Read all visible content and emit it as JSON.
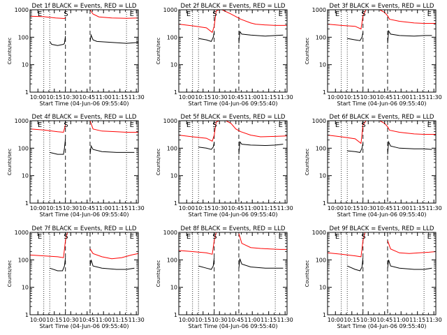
{
  "chart_data": [
    {
      "panel": "det1f",
      "type": "line",
      "title": "Det 1f BLACK = Events, RED = LLD",
      "xlabel": "Start Time (04-Jun-06 09:55:40)",
      "ylabel": "Counts/sec",
      "yscale": "log",
      "ylim": [
        1,
        1000
      ],
      "yticks": [
        "1",
        "10",
        "100",
        "1000"
      ],
      "xticks": [
        "10:00",
        "10:15",
        "10:30",
        "10:45",
        "11:00",
        "11:15",
        "11:30"
      ],
      "markers": [
        "E",
        "S",
        "E"
      ],
      "series": [
        {
          "color": "#ff0000",
          "x": [
            -0.08,
            0.06,
            0.18,
            0.27,
            0.28
          ],
          "y": [
            580,
            560,
            500,
            480,
            520
          ]
        },
        {
          "color": "#ff0000",
          "x": [
            0.53,
            0.56,
            0.62,
            0.75,
            0.9,
            1.02
          ],
          "y": [
            1000,
            700,
            550,
            500,
            490,
            500
          ]
        },
        {
          "color": "#000000",
          "x": [
            0.12,
            0.14,
            0.2,
            0.26,
            0.27,
            0.28
          ],
          "y": [
            70,
            55,
            50,
            55,
            60,
            110
          ]
        },
        {
          "color": "#000000",
          "x": [
            0.53,
            0.54,
            0.56,
            0.6,
            0.75,
            0.9,
            1.02
          ],
          "y": [
            70,
            120,
            80,
            70,
            65,
            60,
            65
          ]
        }
      ]
    },
    {
      "panel": "det2f",
      "type": "line",
      "title": "Det 2f BLACK = Events, RED = LLD",
      "xlabel": "Start Time (04-Jun-06 09:55:40)",
      "ylabel": "Counts/sec",
      "yscale": "log",
      "ylim": [
        1,
        1000
      ],
      "yticks": [
        "1",
        "10",
        "100",
        "1000"
      ],
      "xticks": [
        "10:00",
        "10:15",
        "10:30",
        "10:45",
        "11:00",
        "11:15",
        "11:30"
      ],
      "markers": [
        "E",
        "S",
        "E"
      ],
      "series": [
        {
          "color": "#ff0000",
          "x": [
            -0.08,
            0.06,
            0.2,
            0.26,
            0.28,
            0.3,
            0.33
          ],
          "y": [
            300,
            260,
            220,
            150,
            250,
            900,
            1000
          ]
        },
        {
          "color": "#ff0000",
          "x": [
            0.36,
            0.45,
            0.55,
            0.65,
            0.7,
            0.8,
            0.9,
            1.02
          ],
          "y": [
            1000,
            700,
            450,
            330,
            300,
            280,
            270,
            270
          ]
        },
        {
          "color": "#000000",
          "x": [
            0.12,
            0.2,
            0.25,
            0.27,
            0.28
          ],
          "y": [
            90,
            80,
            70,
            100,
            150
          ]
        },
        {
          "color": "#000000",
          "x": [
            0.53,
            0.54,
            0.56,
            0.65,
            0.8,
            0.9,
            0.98
          ],
          "y": [
            60,
            160,
            130,
            120,
            110,
            115,
            120
          ]
        }
      ]
    },
    {
      "panel": "det3f",
      "type": "line",
      "title": "Det 3f BLACK = Events, RED = LLD",
      "xlabel": "Start Time (04-Jun-06 09:55:40)",
      "ylabel": "Counts/sec",
      "yscale": "log",
      "ylim": [
        1,
        1000
      ],
      "yticks": [
        "1",
        "10",
        "100",
        "1000"
      ],
      "xticks": [
        "10:00",
        "10:15",
        "10:30",
        "10:45",
        "11:00",
        "11:15",
        "11:30"
      ],
      "markers": [
        "E",
        "S",
        "E"
      ],
      "series": [
        {
          "color": "#ff0000",
          "x": [
            -0.08,
            0.06,
            0.2,
            0.26,
            0.28,
            0.31,
            0.35,
            0.45,
            0.5,
            0.53,
            0.55,
            0.65,
            0.8,
            0.9,
            1.02
          ],
          "y": [
            300,
            270,
            250,
            200,
            600,
            1000,
            1000,
            1000,
            800,
            600,
            450,
            380,
            330,
            320,
            320
          ]
        },
        {
          "color": "#000000",
          "x": [
            0.12,
            0.2,
            0.25,
            0.27,
            0.28
          ],
          "y": [
            90,
            80,
            75,
            100,
            150
          ]
        },
        {
          "color": "#000000",
          "x": [
            0.53,
            0.54,
            0.56,
            0.65,
            0.8,
            0.9,
            0.98
          ],
          "y": [
            60,
            170,
            130,
            115,
            110,
            115,
            115
          ]
        }
      ]
    },
    {
      "panel": "det4f",
      "type": "line",
      "title": "Det 4f BLACK = Events, RED = LLD",
      "xlabel": "Start Time (04-Jun-06 09:55:40)",
      "ylabel": "Counts/sec",
      "yscale": "log",
      "ylim": [
        1,
        1000
      ],
      "yticks": [
        "1",
        "10",
        "100",
        "1000"
      ],
      "xticks": [
        "10:00",
        "10:15",
        "10:30",
        "10:45",
        "11:00",
        "11:15",
        "11:30"
      ],
      "markers": [
        "E",
        "S",
        "E"
      ],
      "series": [
        {
          "color": "#ff0000",
          "x": [
            -0.08,
            0.06,
            0.2,
            0.26,
            0.28
          ],
          "y": [
            500,
            460,
            400,
            380,
            700
          ]
        },
        {
          "color": "#ff0000",
          "x": [
            0.53,
            0.56,
            0.65,
            0.8,
            0.9,
            1.02
          ],
          "y": [
            1000,
            500,
            420,
            400,
            380,
            380
          ]
        },
        {
          "color": "#000000",
          "x": [
            0.12,
            0.2,
            0.26,
            0.27,
            0.28
          ],
          "y": [
            70,
            60,
            60,
            100,
            220
          ]
        },
        {
          "color": "#000000",
          "x": [
            0.53,
            0.54,
            0.56,
            0.65,
            0.8,
            0.9,
            0.98
          ],
          "y": [
            60,
            120,
            90,
            75,
            70,
            70,
            70
          ]
        }
      ]
    },
    {
      "panel": "det5f",
      "type": "line",
      "title": "Det 5f BLACK = Events, RED = LLD",
      "xlabel": "Start Time (04-Jun-06 09:55:40)",
      "ylabel": "Counts/sec",
      "yscale": "log",
      "ylim": [
        1,
        1000
      ],
      "yticks": [
        "1",
        "10",
        "100",
        "1000"
      ],
      "xticks": [
        "10:00",
        "10:15",
        "10:30",
        "10:45",
        "11:00",
        "11:15",
        "11:30"
      ],
      "markers": [
        "E",
        "S",
        "E"
      ],
      "series": [
        {
          "color": "#ff0000",
          "x": [
            -0.08,
            0.06,
            0.2,
            0.26,
            0.28,
            0.3,
            0.33
          ],
          "y": [
            300,
            260,
            230,
            180,
            300,
            900,
            1000
          ]
        },
        {
          "color": "#ff0000",
          "x": [
            0.4,
            0.45,
            0.5,
            0.55,
            0.65,
            0.75,
            0.9,
            1.02
          ],
          "y": [
            1000,
            800,
            500,
            400,
            300,
            260,
            270,
            280
          ]
        },
        {
          "color": "#000000",
          "x": [
            0.12,
            0.2,
            0.25,
            0.27,
            0.28
          ],
          "y": [
            110,
            100,
            90,
            110,
            160
          ]
        },
        {
          "color": "#000000",
          "x": [
            0.53,
            0.54,
            0.56,
            0.65,
            0.8,
            0.9,
            0.98
          ],
          "y": [
            60,
            170,
            140,
            130,
            125,
            130,
            140
          ]
        }
      ]
    },
    {
      "panel": "det6f",
      "type": "line",
      "title": "Det 6f BLACK = Events, RED = LLD",
      "xlabel": "Start Time (04-Jun-06 09:55:40)",
      "ylabel": "Counts/sec",
      "yscale": "log",
      "ylim": [
        1,
        1000
      ],
      "yticks": [
        "1",
        "10",
        "100",
        "1000"
      ],
      "xticks": [
        "10:00",
        "10:15",
        "10:30",
        "10:45",
        "11:00",
        "11:15",
        "11:30"
      ],
      "markers": [
        "E",
        "S",
        "E"
      ],
      "series": [
        {
          "color": "#ff0000",
          "x": [
            -0.08,
            0.06,
            0.2,
            0.26,
            0.28,
            0.31,
            0.35,
            0.45,
            0.5,
            0.53,
            0.55,
            0.65,
            0.8,
            0.9,
            1.02
          ],
          "y": [
            300,
            260,
            220,
            150,
            700,
            1000,
            1000,
            1000,
            800,
            600,
            450,
            380,
            330,
            320,
            320
          ]
        },
        {
          "color": "#000000",
          "x": [
            0.12,
            0.2,
            0.25,
            0.27,
            0.28
          ],
          "y": [
            80,
            75,
            70,
            100,
            150
          ]
        },
        {
          "color": "#000000",
          "x": [
            0.53,
            0.54,
            0.56,
            0.65,
            0.8,
            0.9,
            0.98
          ],
          "y": [
            60,
            170,
            120,
            100,
            95,
            95,
            90
          ]
        }
      ]
    },
    {
      "panel": "det7f",
      "type": "line",
      "title": "Det 7f BLACK = Events, RED = LLD",
      "xlabel": "Start Time (04-Jun-06 09:55:40)",
      "ylabel": "Counts/sec",
      "yscale": "log",
      "ylim": [
        1,
        1000
      ],
      "yticks": [
        "1",
        "10",
        "100",
        "1000"
      ],
      "xticks": [
        "10:00",
        "10:15",
        "10:30",
        "10:45",
        "11:00",
        "11:15",
        "11:30"
      ],
      "markers": [
        "E",
        "S",
        "E"
      ],
      "series": [
        {
          "color": "#ff0000",
          "x": [
            -0.08,
            0.06,
            0.2,
            0.26,
            0.28,
            0.3
          ],
          "y": [
            150,
            140,
            130,
            120,
            500,
            1000
          ]
        },
        {
          "color": "#ff0000",
          "x": [
            0.53,
            0.56,
            0.65,
            0.75,
            0.85,
            0.95,
            1.02
          ],
          "y": [
            250,
            170,
            130,
            110,
            120,
            150,
            170
          ]
        },
        {
          "color": "#000000",
          "x": [
            0.12,
            0.2,
            0.25,
            0.27,
            0.28
          ],
          "y": [
            50,
            40,
            40,
            60,
            120
          ]
        },
        {
          "color": "#000000",
          "x": [
            0.53,
            0.54,
            0.56,
            0.65,
            0.8,
            0.9,
            0.98
          ],
          "y": [
            60,
            100,
            60,
            50,
            45,
            45,
            50
          ]
        }
      ]
    },
    {
      "panel": "det8f",
      "type": "line",
      "title": "Det 8f BLACK = Events, RED = LLD",
      "xlabel": "Start Time (04-Jun-06 09:55:40)",
      "ylabel": "Counts/sec",
      "yscale": "log",
      "ylim": [
        1,
        1000
      ],
      "yticks": [
        "1",
        "10",
        "100",
        "1000"
      ],
      "xticks": [
        "10:00",
        "10:15",
        "10:30",
        "10:45",
        "11:00",
        "11:15",
        "11:30"
      ],
      "markers": [
        "E",
        "S",
        "E"
      ],
      "series": [
        {
          "color": "#ff0000",
          "x": [
            -0.08,
            0.06,
            0.2,
            0.26,
            0.28,
            0.3
          ],
          "y": [
            220,
            200,
            180,
            160,
            500,
            1000
          ]
        },
        {
          "color": "#ff0000",
          "x": [
            0.53,
            0.56,
            0.65,
            0.75,
            0.85,
            0.95,
            1.02
          ],
          "y": [
            900,
            400,
            280,
            260,
            250,
            240,
            240
          ]
        },
        {
          "color": "#000000",
          "x": [
            0.12,
            0.2,
            0.25,
            0.27,
            0.28
          ],
          "y": [
            60,
            50,
            45,
            60,
            120
          ]
        },
        {
          "color": "#000000",
          "x": [
            0.53,
            0.54,
            0.56,
            0.65,
            0.8,
            0.9,
            0.98
          ],
          "y": [
            50,
            110,
            70,
            55,
            50,
            50,
            50
          ]
        }
      ]
    },
    {
      "panel": "det9f",
      "type": "line",
      "title": "Det 9f BLACK = Events, RED = LLD",
      "xlabel": "Start Time (04-Jun-06 09:55:40)",
      "ylabel": "Counts/sec",
      "yscale": "log",
      "ylim": [
        1,
        1000
      ],
      "yticks": [
        "1",
        "10",
        "100",
        "1000"
      ],
      "xticks": [
        "10:00",
        "10:15",
        "10:30",
        "10:45",
        "11:00",
        "11:15",
        "11:30"
      ],
      "markers": [
        "E",
        "S",
        "E"
      ],
      "series": [
        {
          "color": "#ff0000",
          "x": [
            -0.08,
            0.06,
            0.2,
            0.26,
            0.28,
            0.3
          ],
          "y": [
            180,
            160,
            140,
            130,
            500,
            1000
          ]
        },
        {
          "color": "#ff0000",
          "x": [
            0.53,
            0.56,
            0.65,
            0.75,
            0.85,
            0.95,
            1.02
          ],
          "y": [
            500,
            250,
            180,
            170,
            180,
            190,
            200
          ]
        },
        {
          "color": "#000000",
          "x": [
            0.12,
            0.2,
            0.25,
            0.27,
            0.28
          ],
          "y": [
            60,
            45,
            40,
            55,
            120
          ]
        },
        {
          "color": "#000000",
          "x": [
            0.53,
            0.54,
            0.56,
            0.65,
            0.8,
            0.9,
            0.98
          ],
          "y": [
            50,
            100,
            60,
            50,
            45,
            45,
            50
          ]
        }
      ]
    }
  ]
}
